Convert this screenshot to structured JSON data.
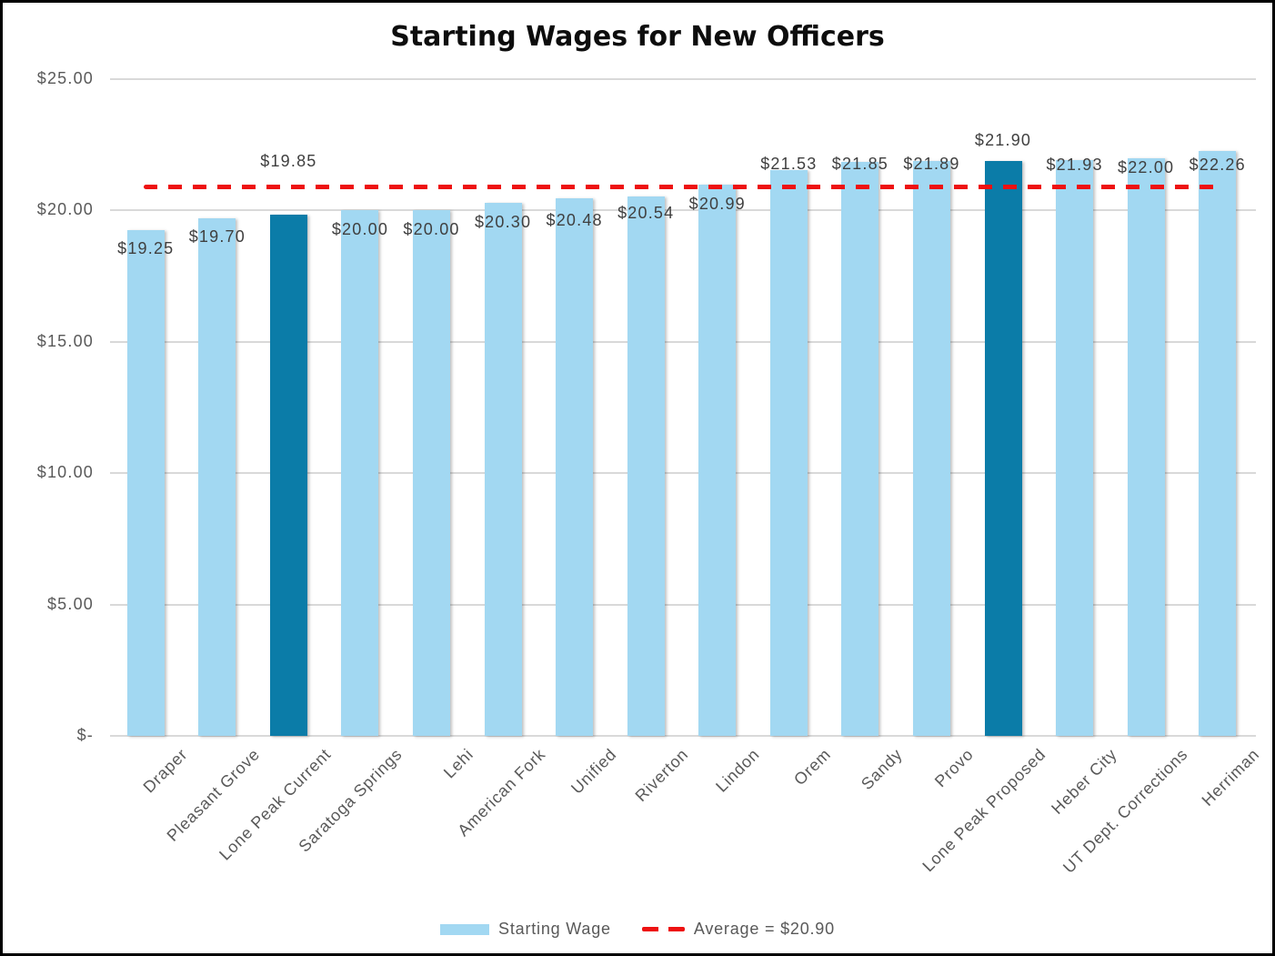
{
  "title": "Starting Wages for New Officers",
  "legend": {
    "series_label": "Starting Wage",
    "average_label": "Average = $20.90"
  },
  "chart_data": {
    "type": "bar",
    "title": "Starting Wages for New Officers",
    "categories": [
      "Draper",
      "Pleasant Grove",
      "Lone Peak Current",
      "Saratoga Springs",
      "Lehi",
      "American Fork",
      "Unified",
      "Riverton",
      "Lindon",
      "Orem",
      "Sandy",
      "Provo",
      "Lone Peak Proposed",
      "Heber City",
      "UT Dept. Corrections",
      "Herriman"
    ],
    "values": [
      19.25,
      19.7,
      19.85,
      20.0,
      20.0,
      20.3,
      20.48,
      20.54,
      20.99,
      21.53,
      21.85,
      21.89,
      21.9,
      21.93,
      22.0,
      22.26
    ],
    "data_labels": [
      "$19.25",
      "$19.70",
      "$19.85",
      "$20.00",
      "$20.00",
      "$20.30",
      "$20.48",
      "$20.54",
      "$20.99",
      "$21.53",
      "$21.85",
      "$21.89",
      "$21.90",
      "$21.93",
      "$22.00",
      "$22.26"
    ],
    "highlight_indices": [
      2,
      12
    ],
    "series_name": "Starting Wage",
    "average_value": 20.9,
    "average_label": "Average = $20.90",
    "yticks": [
      {
        "value": 0,
        "label": "$-"
      },
      {
        "value": 5,
        "label": "$5.00"
      },
      {
        "value": 10,
        "label": "$10.00"
      },
      {
        "value": 15,
        "label": "$15.00"
      },
      {
        "value": 20,
        "label": "$20.00"
      },
      {
        "value": 25,
        "label": "$25.00"
      }
    ],
    "ylim": [
      0,
      25
    ],
    "grid": true,
    "legend_position": "bottom",
    "colors": {
      "bar": "#a2d8f2",
      "highlight_bar": "#0b7ca8",
      "average_line": "#ee1111",
      "gridline": "#d9d9d9",
      "axis_text": "#595959",
      "data_label_text": "#3f3f3f",
      "title_text": "#0d0d0d"
    }
  }
}
